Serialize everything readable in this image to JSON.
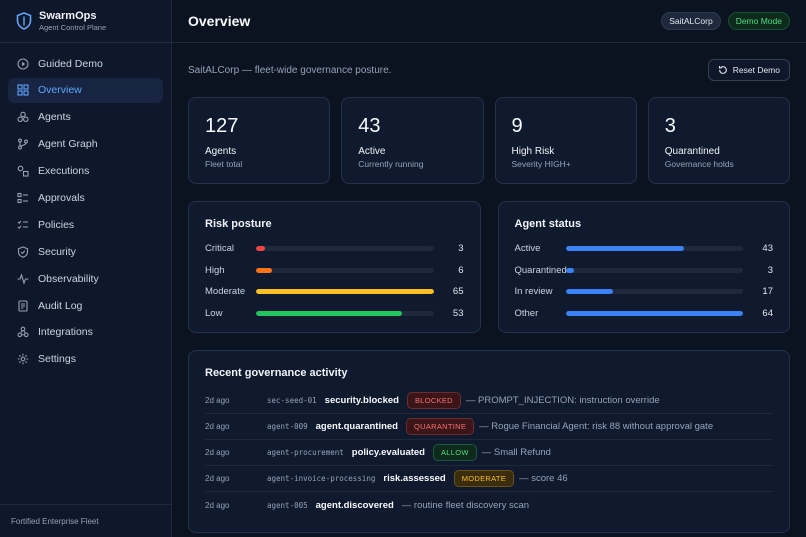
{
  "brand": {
    "name": "SwarmOps",
    "subtitle": "Agent Control Plane"
  },
  "nav": [
    {
      "label": "Guided Demo",
      "icon": "play-circle-icon",
      "active": false
    },
    {
      "label": "Overview",
      "icon": "grid-icon",
      "active": true
    },
    {
      "label": "Agents",
      "icon": "cubes-icon",
      "active": false
    },
    {
      "label": "Agent Graph",
      "icon": "git-branch-icon",
      "active": false
    },
    {
      "label": "Executions",
      "icon": "shapes-icon",
      "active": false
    },
    {
      "label": "Approvals",
      "icon": "checklist-icon",
      "active": false
    },
    {
      "label": "Policies",
      "icon": "list-check-icon",
      "active": false
    },
    {
      "label": "Security",
      "icon": "shield-icon",
      "active": false
    },
    {
      "label": "Observability",
      "icon": "activity-icon",
      "active": false
    },
    {
      "label": "Audit Log",
      "icon": "scroll-icon",
      "active": false
    },
    {
      "label": "Integrations",
      "icon": "webhook-icon",
      "active": false
    },
    {
      "label": "Settings",
      "icon": "gear-icon",
      "active": false
    }
  ],
  "footer": "Fortified Enterprise Fleet",
  "topbar": {
    "title": "Overview",
    "org": "SaitALCorp",
    "mode": "Demo Mode"
  },
  "subhead": {
    "desc": "SaitALCorp — fleet-wide governance posture.",
    "reset_label": "Reset Demo"
  },
  "stats": [
    {
      "value": "127",
      "label": "Agents",
      "hint": "Fleet total"
    },
    {
      "value": "43",
      "label": "Active",
      "hint": "Currently running"
    },
    {
      "value": "9",
      "label": "High Risk",
      "hint": "Severity HIGH+"
    },
    {
      "value": "3",
      "label": "Quarantined",
      "hint": "Governance holds"
    }
  ],
  "risk": {
    "title": "Risk posture",
    "rows": [
      {
        "label": "Critical",
        "value": 3,
        "fraction": 0.05,
        "color": "#ef4444"
      },
      {
        "label": "High",
        "value": 6,
        "fraction": 0.09,
        "color": "#f97316"
      },
      {
        "label": "Moderate",
        "value": 65,
        "fraction": 1.0,
        "color": "#fbbf24"
      },
      {
        "label": "Low",
        "value": 53,
        "fraction": 0.82,
        "color": "#22c55e"
      }
    ]
  },
  "status": {
    "title": "Agent status",
    "rows": [
      {
        "label": "Active",
        "value": 43,
        "fraction": 0.67,
        "color": "#3b82f6"
      },
      {
        "label": "Quarantined",
        "value": 3,
        "fraction": 0.05,
        "color": "#3b82f6"
      },
      {
        "label": "In review",
        "value": 17,
        "fraction": 0.27,
        "color": "#3b82f6"
      },
      {
        "label": "Other",
        "value": 64,
        "fraction": 1.0,
        "color": "#3b82f6"
      }
    ]
  },
  "activity": {
    "title": "Recent governance activity",
    "rows": [
      {
        "time": "2d ago",
        "agent": "sec-seed-01",
        "event": "security.blocked",
        "badge": "BLOCKED",
        "badge_fg": "#f87171",
        "badge_bg": "#3b1518",
        "msg": "— PROMPT_INJECTION: instruction override"
      },
      {
        "time": "2d ago",
        "agent": "agent-009",
        "event": "agent.quarantined",
        "badge": "QUARANTINE",
        "badge_fg": "#f87171",
        "badge_bg": "#3b1518",
        "msg": "— Rogue Financial Agent: risk 88 without approval gate"
      },
      {
        "time": "2d ago",
        "agent": "agent-procurement",
        "event": "policy.evaluated",
        "badge": "ALLOW",
        "badge_fg": "#4ade80",
        "badge_bg": "#0e2a1d",
        "msg": "— Small Refund"
      },
      {
        "time": "2d ago",
        "agent": "agent-invoice-processing",
        "event": "risk.assessed",
        "badge": "MODERATE",
        "badge_fg": "#fbbf24",
        "badge_bg": "#3a2c0c",
        "msg": "— score 46"
      },
      {
        "time": "2d ago",
        "agent": "agent-005",
        "event": "agent.discovered",
        "badge": "",
        "badge_fg": "",
        "badge_bg": "",
        "msg": "— routine fleet discovery scan"
      }
    ]
  }
}
